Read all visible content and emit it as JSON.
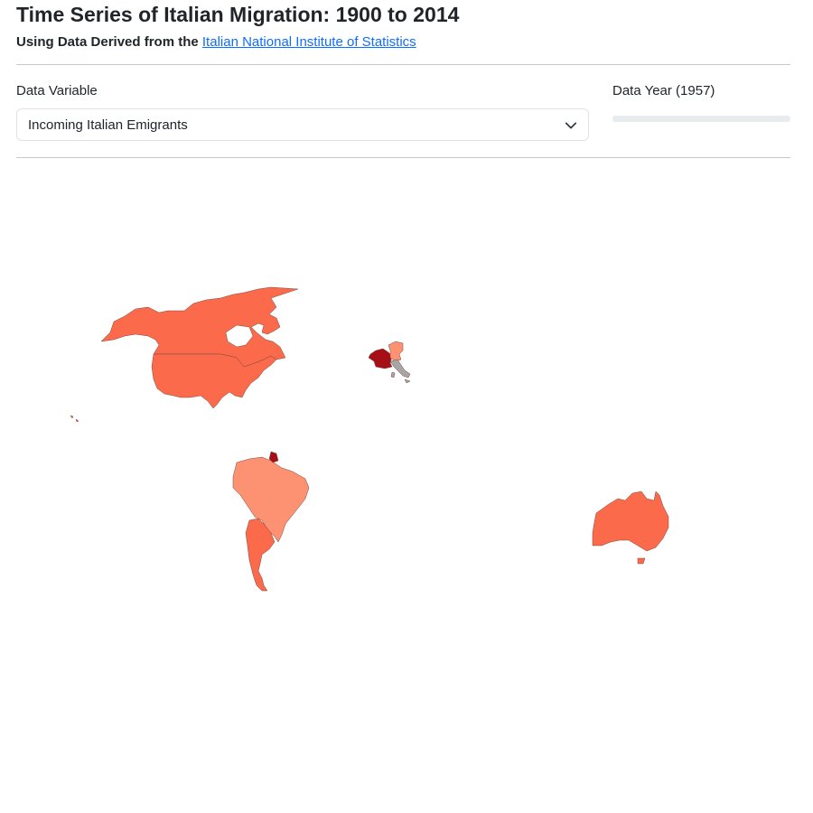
{
  "header": {
    "title": "Time Series of Italian Migration: 1900 to 2014",
    "subtitle_prefix": "Using Data Derived from the",
    "source_link": "Italian National Institute of Statistics"
  },
  "controls": {
    "variable_label": "Data Variable",
    "variable_selected": "Incoming Italian Emigrants",
    "year_label": "Data Year (1957)"
  },
  "map": {
    "colors": {
      "high": "#a50f15",
      "mid": "#fb6a4a",
      "low": "#fc9272",
      "italy": "#a6a6a6"
    },
    "countries": [
      {
        "name": "canada",
        "level": "mid"
      },
      {
        "name": "united-states",
        "level": "mid"
      },
      {
        "name": "france",
        "level": "high"
      },
      {
        "name": "switzerland",
        "level": "low"
      },
      {
        "name": "italy",
        "level": "italy"
      },
      {
        "name": "brazil",
        "level": "low"
      },
      {
        "name": "french-guiana",
        "level": "high"
      },
      {
        "name": "argentina",
        "level": "mid"
      },
      {
        "name": "australia",
        "level": "mid"
      }
    ]
  }
}
